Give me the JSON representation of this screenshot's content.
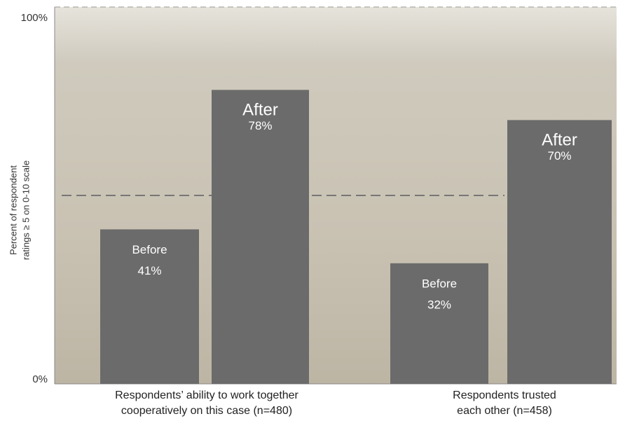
{
  "chart_data": {
    "type": "bar",
    "y_label": [
      "Percent of respondent",
      "ratings ≥ 5 on 0-10 scale"
    ],
    "categories": [
      [
        "Respondents’ ability to work together",
        "cooperatively on this case (n=480)"
      ],
      [
        "Respondents trusted",
        "each other (n=458)"
      ]
    ],
    "series": [
      {
        "name": "Before",
        "color": "#6b6b6b",
        "values": [
          41,
          32
        ],
        "value_labels": [
          "41%",
          "32%"
        ]
      },
      {
        "name": "After",
        "color": "#6b6b6b",
        "values": [
          78,
          70
        ],
        "value_labels": [
          "78%",
          "70%"
        ]
      }
    ],
    "ylim": [
      0,
      100
    ],
    "yticks": [
      {
        "value": 0,
        "label": "0%"
      },
      {
        "value": 100,
        "label": "100%"
      }
    ],
    "reference_line": 50,
    "grid": true
  }
}
